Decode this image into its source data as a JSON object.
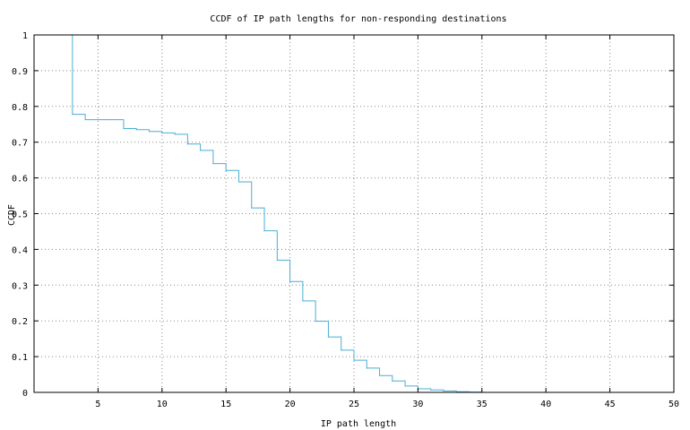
{
  "chart_data": {
    "type": "line",
    "step": true,
    "title": "CCDF of IP path lengths for non-responding destinations",
    "xlabel": "IP path length",
    "ylabel": "CCDF",
    "xlim": [
      0,
      50
    ],
    "ylim": [
      0,
      1
    ],
    "x_ticks": [
      5,
      10,
      15,
      20,
      25,
      30,
      35,
      40,
      45,
      50
    ],
    "y_ticks": [
      0,
      0.1,
      0.2,
      0.3,
      0.4,
      0.5,
      0.6,
      0.7,
      0.8,
      0.9,
      1
    ],
    "x_tick_labels": [
      "5",
      "10",
      "15",
      "20",
      "25",
      "30",
      "35",
      "40",
      "45",
      "50"
    ],
    "y_tick_labels": [
      "0",
      "0.1",
      "0.2",
      "0.3",
      "0.4",
      "0.5",
      "0.6",
      "0.7",
      "0.8",
      "0.9",
      "1"
    ],
    "grid": true,
    "line_color": "#4aaed6",
    "series": [
      {
        "x": [
          2,
          3,
          4,
          5,
          6,
          7,
          8,
          9,
          10,
          11,
          12,
          13,
          14,
          15,
          16,
          17,
          18,
          19,
          20,
          21,
          22,
          23,
          24,
          25,
          26,
          27,
          28,
          29,
          30,
          31,
          32,
          33,
          34,
          35
        ],
        "y": [
          1.0,
          0.778,
          0.763,
          0.763,
          0.763,
          0.738,
          0.735,
          0.73,
          0.726,
          0.722,
          0.695,
          0.677,
          0.64,
          0.621,
          0.589,
          0.516,
          0.452,
          0.37,
          0.31,
          0.256,
          0.199,
          0.155,
          0.118,
          0.09,
          0.068,
          0.047,
          0.032,
          0.018,
          0.01,
          0.007,
          0.004,
          0.002,
          0.001,
          0.0
        ]
      }
    ]
  }
}
